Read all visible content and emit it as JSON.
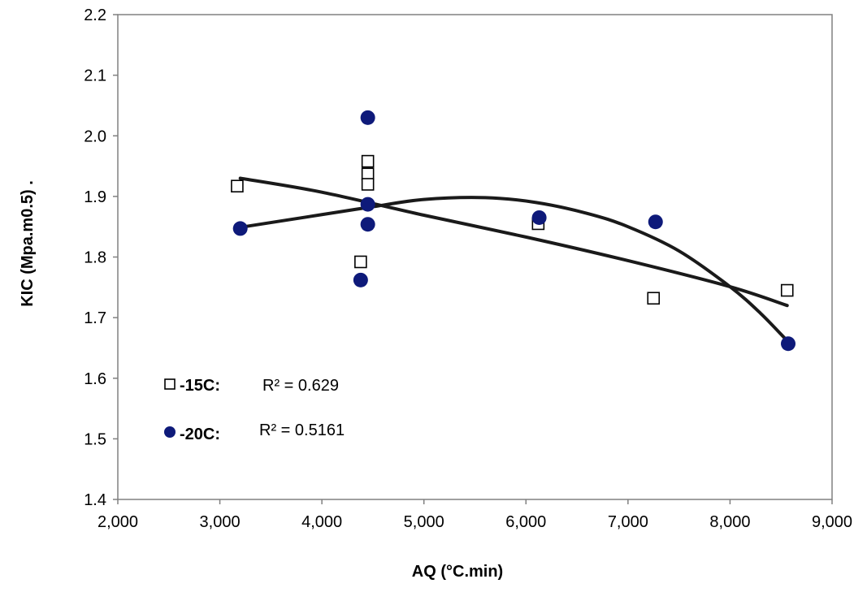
{
  "chart_data": {
    "type": "scatter",
    "title": "",
    "xlabel": "AQ (°C.min)",
    "ylabel": "KIC (Mpa.m0.5) .",
    "xlim": [
      2000,
      9000
    ],
    "ylim": [
      1.4,
      2.2
    ],
    "x_ticks": [
      "2,000",
      "3,000",
      "4,000",
      "5,000",
      "6,000",
      "7,000",
      "8,000",
      "9,000"
    ],
    "y_ticks": [
      "2.2",
      "2.1",
      "2.0",
      "1.9",
      "1.8",
      "1.7",
      "1.6",
      "1.5",
      "1.4"
    ],
    "grid": false,
    "series": [
      {
        "name": "-15C:",
        "marker": "open-square",
        "color": "#000000",
        "r2_label": "R² = 0.629",
        "points": [
          {
            "x": 3170,
            "y": 1.917
          },
          {
            "x": 4380,
            "y": 1.792
          },
          {
            "x": 4450,
            "y": 1.958
          },
          {
            "x": 4450,
            "y": 1.937
          },
          {
            "x": 4450,
            "y": 1.92
          },
          {
            "x": 6120,
            "y": 1.855
          },
          {
            "x": 7250,
            "y": 1.732
          },
          {
            "x": 8560,
            "y": 1.745
          }
        ],
        "trendline": [
          {
            "x": 3200,
            "y": 1.93
          },
          {
            "x": 4000,
            "y": 1.907
          },
          {
            "x": 5000,
            "y": 1.869
          },
          {
            "x": 6000,
            "y": 1.833
          },
          {
            "x": 7000,
            "y": 1.794
          },
          {
            "x": 8000,
            "y": 1.751
          },
          {
            "x": 8560,
            "y": 1.72
          }
        ]
      },
      {
        "name": "-20C:",
        "marker": "filled-circle",
        "color": "#0e1a7a",
        "r2_label": "R² = 0.5161",
        "points": [
          {
            "x": 3200,
            "y": 1.847
          },
          {
            "x": 4380,
            "y": 1.762
          },
          {
            "x": 4450,
            "y": 2.03
          },
          {
            "x": 4450,
            "y": 1.887
          },
          {
            "x": 4450,
            "y": 1.854
          },
          {
            "x": 6130,
            "y": 1.865
          },
          {
            "x": 7270,
            "y": 1.858
          },
          {
            "x": 8570,
            "y": 1.657
          }
        ],
        "trendline": [
          {
            "x": 3200,
            "y": 1.849
          },
          {
            "x": 4000,
            "y": 1.87
          },
          {
            "x": 4500,
            "y": 1.883
          },
          {
            "x": 5000,
            "y": 1.895
          },
          {
            "x": 5600,
            "y": 1.898
          },
          {
            "x": 6100,
            "y": 1.89
          },
          {
            "x": 6600,
            "y": 1.872
          },
          {
            "x": 7000,
            "y": 1.85
          },
          {
            "x": 7500,
            "y": 1.81
          },
          {
            "x": 8000,
            "y": 1.751
          },
          {
            "x": 8300,
            "y": 1.707
          },
          {
            "x": 8570,
            "y": 1.66
          }
        ]
      }
    ],
    "legend_position": "bottom-left"
  }
}
